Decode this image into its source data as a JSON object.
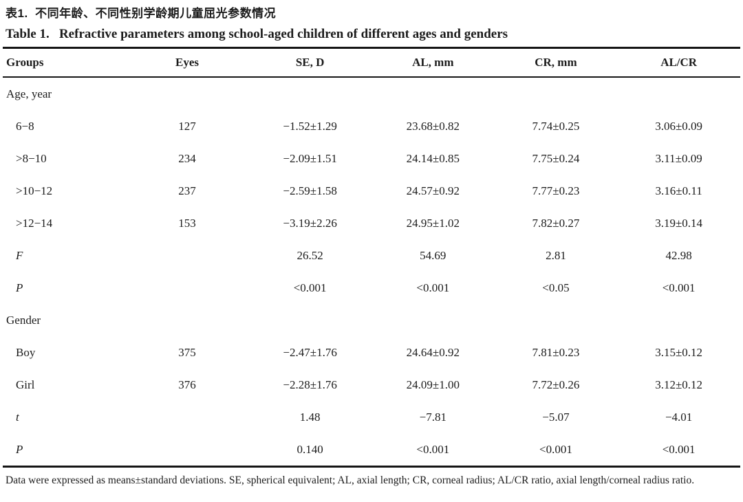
{
  "page": {
    "title_zh": "表1.  不同年龄、不同性别学龄期儿童屈光参数情况",
    "title_en": "Table 1.   Refractive parameters among school-aged children of different ages and genders",
    "footnote": "Data were expressed as means±standard deviations. SE, spherical equivalent; AL, axial length; CR, corneal radius; AL/CR ratio, axial length/corneal radius ratio."
  },
  "table": {
    "columns": [
      "Groups",
      "Eyes",
      "SE, D",
      "AL, mm",
      "CR, mm",
      "AL/CR"
    ],
    "rows": [
      {
        "label": "Age, year",
        "kind": "section",
        "values": [
          "",
          "",
          "",
          "",
          ""
        ]
      },
      {
        "label": "6−8",
        "kind": "data",
        "values": [
          "127",
          "−1.52±1.29",
          "23.68±0.82",
          "7.74±0.25",
          "3.06±0.09"
        ]
      },
      {
        "label": ">8−10",
        "kind": "data",
        "values": [
          "234",
          "−2.09±1.51",
          "24.14±0.85",
          "7.75±0.24",
          "3.11±0.09"
        ]
      },
      {
        "label": ">10−12",
        "kind": "data",
        "values": [
          "237",
          "−2.59±1.58",
          "24.57±0.92",
          "7.77±0.23",
          "3.16±0.11"
        ]
      },
      {
        "label": ">12−14",
        "kind": "data",
        "values": [
          "153",
          "−3.19±2.26",
          "24.95±1.02",
          "7.82±0.27",
          "3.19±0.14"
        ]
      },
      {
        "label": "F",
        "kind": "stat",
        "values": [
          "",
          "26.52",
          "54.69",
          "2.81",
          "42.98"
        ]
      },
      {
        "label": "P",
        "kind": "stat",
        "values": [
          "",
          "<0.001",
          "<0.001",
          "<0.05",
          "<0.001"
        ]
      },
      {
        "label": "Gender",
        "kind": "section",
        "values": [
          "",
          "",
          "",
          "",
          ""
        ]
      },
      {
        "label": "Boy",
        "kind": "data",
        "values": [
          "375",
          "−2.47±1.76",
          "24.64±0.92",
          "7.81±0.23",
          "3.15±0.12"
        ]
      },
      {
        "label": "Girl",
        "kind": "data",
        "values": [
          "376",
          "−2.28±1.76",
          "24.09±1.00",
          "7.72±0.26",
          "3.12±0.12"
        ]
      },
      {
        "label": "t",
        "kind": "stat",
        "values": [
          "",
          "1.48",
          "−7.81",
          "−5.07",
          "−4.01"
        ]
      },
      {
        "label": "P",
        "kind": "stat",
        "values": [
          "",
          "0.140",
          "<0.001",
          "<0.001",
          "<0.001"
        ]
      }
    ]
  }
}
